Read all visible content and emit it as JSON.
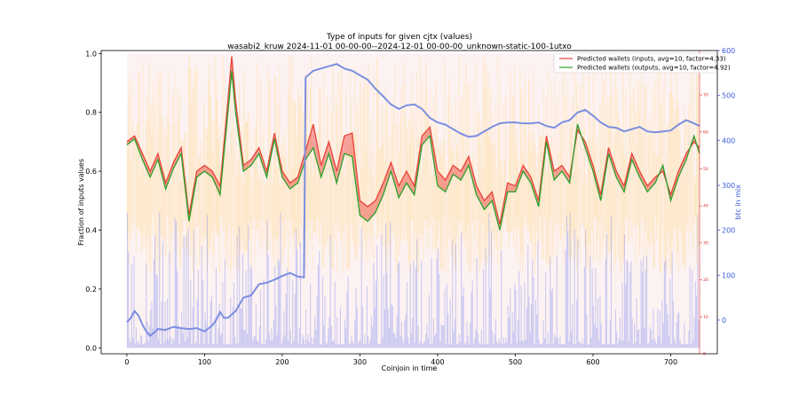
{
  "chart_data": {
    "type": "line",
    "title": "Type of inputs for given cjtx (values)",
    "subtitle": "wasabi2_kruw 2024-11-01 00-00-00--2024-12-01 00-00-00_unknown-static-100-1utxo",
    "xlabel": "Coinjoin in time",
    "ylabel": "Fraction of inputs values",
    "y2label": "btc in mix",
    "xlim": [
      -33,
      760
    ],
    "ylim": [
      -0.02,
      1.01
    ],
    "y2lim": [
      -75,
      600
    ],
    "x_ticks": [
      0,
      100,
      200,
      300,
      400,
      500,
      600,
      700
    ],
    "y_ticks": [
      0.0,
      0.2,
      0.4,
      0.6,
      0.8,
      1.0
    ],
    "y2_ticks": [
      0,
      100,
      200,
      300,
      400,
      500,
      600
    ],
    "y3_ticks": [
      0,
      10,
      20,
      30,
      40,
      50,
      60,
      70,
      80
    ],
    "y3lim": [
      0,
      82
    ],
    "legend_position": "top-right",
    "series": [
      {
        "name": "Predicted wallets (inputs, avg=10, factor=4.33)",
        "color": "#e8433a",
        "points": [
          [
            0,
            0.7
          ],
          [
            10,
            0.72
          ],
          [
            20,
            0.66
          ],
          [
            30,
            0.6
          ],
          [
            40,
            0.66
          ],
          [
            50,
            0.56
          ],
          [
            60,
            0.63
          ],
          [
            70,
            0.68
          ],
          [
            80,
            0.45
          ],
          [
            90,
            0.6
          ],
          [
            100,
            0.62
          ],
          [
            110,
            0.6
          ],
          [
            120,
            0.55
          ],
          [
            130,
            0.84
          ],
          [
            135,
            0.99
          ],
          [
            140,
            0.84
          ],
          [
            150,
            0.62
          ],
          [
            160,
            0.64
          ],
          [
            170,
            0.68
          ],
          [
            180,
            0.6
          ],
          [
            190,
            0.73
          ],
          [
            200,
            0.6
          ],
          [
            210,
            0.56
          ],
          [
            220,
            0.58
          ],
          [
            230,
            0.67
          ],
          [
            240,
            0.76
          ],
          [
            250,
            0.62
          ],
          [
            260,
            0.7
          ],
          [
            270,
            0.6
          ],
          [
            280,
            0.72
          ],
          [
            290,
            0.73
          ],
          [
            300,
            0.5
          ],
          [
            310,
            0.48
          ],
          [
            320,
            0.5
          ],
          [
            330,
            0.56
          ],
          [
            340,
            0.63
          ],
          [
            350,
            0.55
          ],
          [
            360,
            0.6
          ],
          [
            370,
            0.55
          ],
          [
            380,
            0.72
          ],
          [
            390,
            0.75
          ],
          [
            400,
            0.6
          ],
          [
            410,
            0.57
          ],
          [
            420,
            0.62
          ],
          [
            430,
            0.6
          ],
          [
            440,
            0.65
          ],
          [
            450,
            0.55
          ],
          [
            460,
            0.5
          ],
          [
            470,
            0.53
          ],
          [
            480,
            0.42
          ],
          [
            490,
            0.56
          ],
          [
            500,
            0.55
          ],
          [
            510,
            0.62
          ],
          [
            520,
            0.58
          ],
          [
            530,
            0.5
          ],
          [
            540,
            0.72
          ],
          [
            550,
            0.6
          ],
          [
            560,
            0.62
          ],
          [
            570,
            0.58
          ],
          [
            580,
            0.74
          ],
          [
            590,
            0.7
          ],
          [
            600,
            0.62
          ],
          [
            610,
            0.52
          ],
          [
            620,
            0.68
          ],
          [
            630,
            0.6
          ],
          [
            640,
            0.55
          ],
          [
            650,
            0.66
          ],
          [
            660,
            0.6
          ],
          [
            670,
            0.55
          ],
          [
            680,
            0.58
          ],
          [
            690,
            0.6
          ],
          [
            700,
            0.52
          ],
          [
            710,
            0.6
          ],
          [
            720,
            0.66
          ],
          [
            730,
            0.7
          ],
          [
            737,
            0.68
          ]
        ]
      },
      {
        "name": "Predicted wallets (outputs, avg=10, factor=4.92)",
        "color": "#2ca02c",
        "points": [
          [
            0,
            0.69
          ],
          [
            10,
            0.71
          ],
          [
            20,
            0.64
          ],
          [
            30,
            0.58
          ],
          [
            40,
            0.64
          ],
          [
            50,
            0.54
          ],
          [
            60,
            0.61
          ],
          [
            70,
            0.66
          ],
          [
            80,
            0.43
          ],
          [
            90,
            0.58
          ],
          [
            100,
            0.6
          ],
          [
            110,
            0.58
          ],
          [
            120,
            0.52
          ],
          [
            130,
            0.8
          ],
          [
            135,
            0.94
          ],
          [
            140,
            0.8
          ],
          [
            150,
            0.6
          ],
          [
            160,
            0.62
          ],
          [
            170,
            0.66
          ],
          [
            180,
            0.58
          ],
          [
            190,
            0.71
          ],
          [
            200,
            0.58
          ],
          [
            210,
            0.54
          ],
          [
            220,
            0.56
          ],
          [
            230,
            0.64
          ],
          [
            240,
            0.68
          ],
          [
            250,
            0.58
          ],
          [
            260,
            0.66
          ],
          [
            270,
            0.56
          ],
          [
            280,
            0.66
          ],
          [
            290,
            0.65
          ],
          [
            300,
            0.45
          ],
          [
            310,
            0.43
          ],
          [
            320,
            0.46
          ],
          [
            330,
            0.52
          ],
          [
            340,
            0.6
          ],
          [
            350,
            0.51
          ],
          [
            360,
            0.56
          ],
          [
            370,
            0.52
          ],
          [
            380,
            0.69
          ],
          [
            390,
            0.72
          ],
          [
            400,
            0.55
          ],
          [
            410,
            0.53
          ],
          [
            420,
            0.59
          ],
          [
            430,
            0.57
          ],
          [
            440,
            0.62
          ],
          [
            450,
            0.52
          ],
          [
            460,
            0.47
          ],
          [
            470,
            0.5
          ],
          [
            480,
            0.4
          ],
          [
            490,
            0.53
          ],
          [
            500,
            0.53
          ],
          [
            510,
            0.6
          ],
          [
            520,
            0.56
          ],
          [
            530,
            0.48
          ],
          [
            540,
            0.7
          ],
          [
            550,
            0.57
          ],
          [
            560,
            0.6
          ],
          [
            570,
            0.56
          ],
          [
            580,
            0.76
          ],
          [
            590,
            0.68
          ],
          [
            600,
            0.6
          ],
          [
            610,
            0.5
          ],
          [
            620,
            0.66
          ],
          [
            630,
            0.58
          ],
          [
            640,
            0.53
          ],
          [
            650,
            0.64
          ],
          [
            660,
            0.58
          ],
          [
            670,
            0.53
          ],
          [
            680,
            0.56
          ],
          [
            690,
            0.62
          ],
          [
            700,
            0.5
          ],
          [
            710,
            0.58
          ],
          [
            720,
            0.64
          ],
          [
            730,
            0.72
          ],
          [
            737,
            0.66
          ]
        ]
      },
      {
        "name": "btc in mix",
        "color": "#7b8fe0",
        "axis": "right",
        "points": [
          [
            0,
            -5
          ],
          [
            5,
            5
          ],
          [
            10,
            20
          ],
          [
            15,
            10
          ],
          [
            20,
            -10
          ],
          [
            25,
            -25
          ],
          [
            30,
            -35
          ],
          [
            35,
            -28
          ],
          [
            40,
            -20
          ],
          [
            50,
            -22
          ],
          [
            60,
            -15
          ],
          [
            70,
            -18
          ],
          [
            80,
            -20
          ],
          [
            90,
            -18
          ],
          [
            100,
            -25
          ],
          [
            110,
            -12
          ],
          [
            115,
            0
          ],
          [
            120,
            18
          ],
          [
            125,
            5
          ],
          [
            130,
            5
          ],
          [
            140,
            20
          ],
          [
            150,
            50
          ],
          [
            160,
            55
          ],
          [
            170,
            80
          ],
          [
            180,
            83
          ],
          [
            190,
            90
          ],
          [
            200,
            98
          ],
          [
            210,
            105
          ],
          [
            220,
            97
          ],
          [
            228,
            95
          ],
          [
            230,
            540
          ],
          [
            240,
            555
          ],
          [
            250,
            560
          ],
          [
            260,
            565
          ],
          [
            270,
            570
          ],
          [
            280,
            560
          ],
          [
            290,
            555
          ],
          [
            300,
            545
          ],
          [
            310,
            535
          ],
          [
            320,
            515
          ],
          [
            330,
            498
          ],
          [
            340,
            480
          ],
          [
            350,
            470
          ],
          [
            360,
            478
          ],
          [
            370,
            480
          ],
          [
            380,
            470
          ],
          [
            390,
            450
          ],
          [
            400,
            440
          ],
          [
            410,
            435
          ],
          [
            420,
            425
          ],
          [
            430,
            415
          ],
          [
            440,
            408
          ],
          [
            450,
            410
          ],
          [
            460,
            420
          ],
          [
            470,
            430
          ],
          [
            480,
            438
          ],
          [
            490,
            440
          ],
          [
            500,
            440
          ],
          [
            510,
            438
          ],
          [
            520,
            438
          ],
          [
            530,
            440
          ],
          [
            540,
            432
          ],
          [
            550,
            428
          ],
          [
            560,
            440
          ],
          [
            570,
            445
          ],
          [
            580,
            462
          ],
          [
            590,
            468
          ],
          [
            600,
            455
          ],
          [
            610,
            440
          ],
          [
            620,
            430
          ],
          [
            630,
            428
          ],
          [
            640,
            420
          ],
          [
            650,
            425
          ],
          [
            660,
            430
          ],
          [
            670,
            420
          ],
          [
            680,
            418
          ],
          [
            690,
            420
          ],
          [
            700,
            422
          ],
          [
            710,
            435
          ],
          [
            720,
            445
          ],
          [
            730,
            438
          ],
          [
            737,
            432
          ]
        ]
      }
    ]
  }
}
